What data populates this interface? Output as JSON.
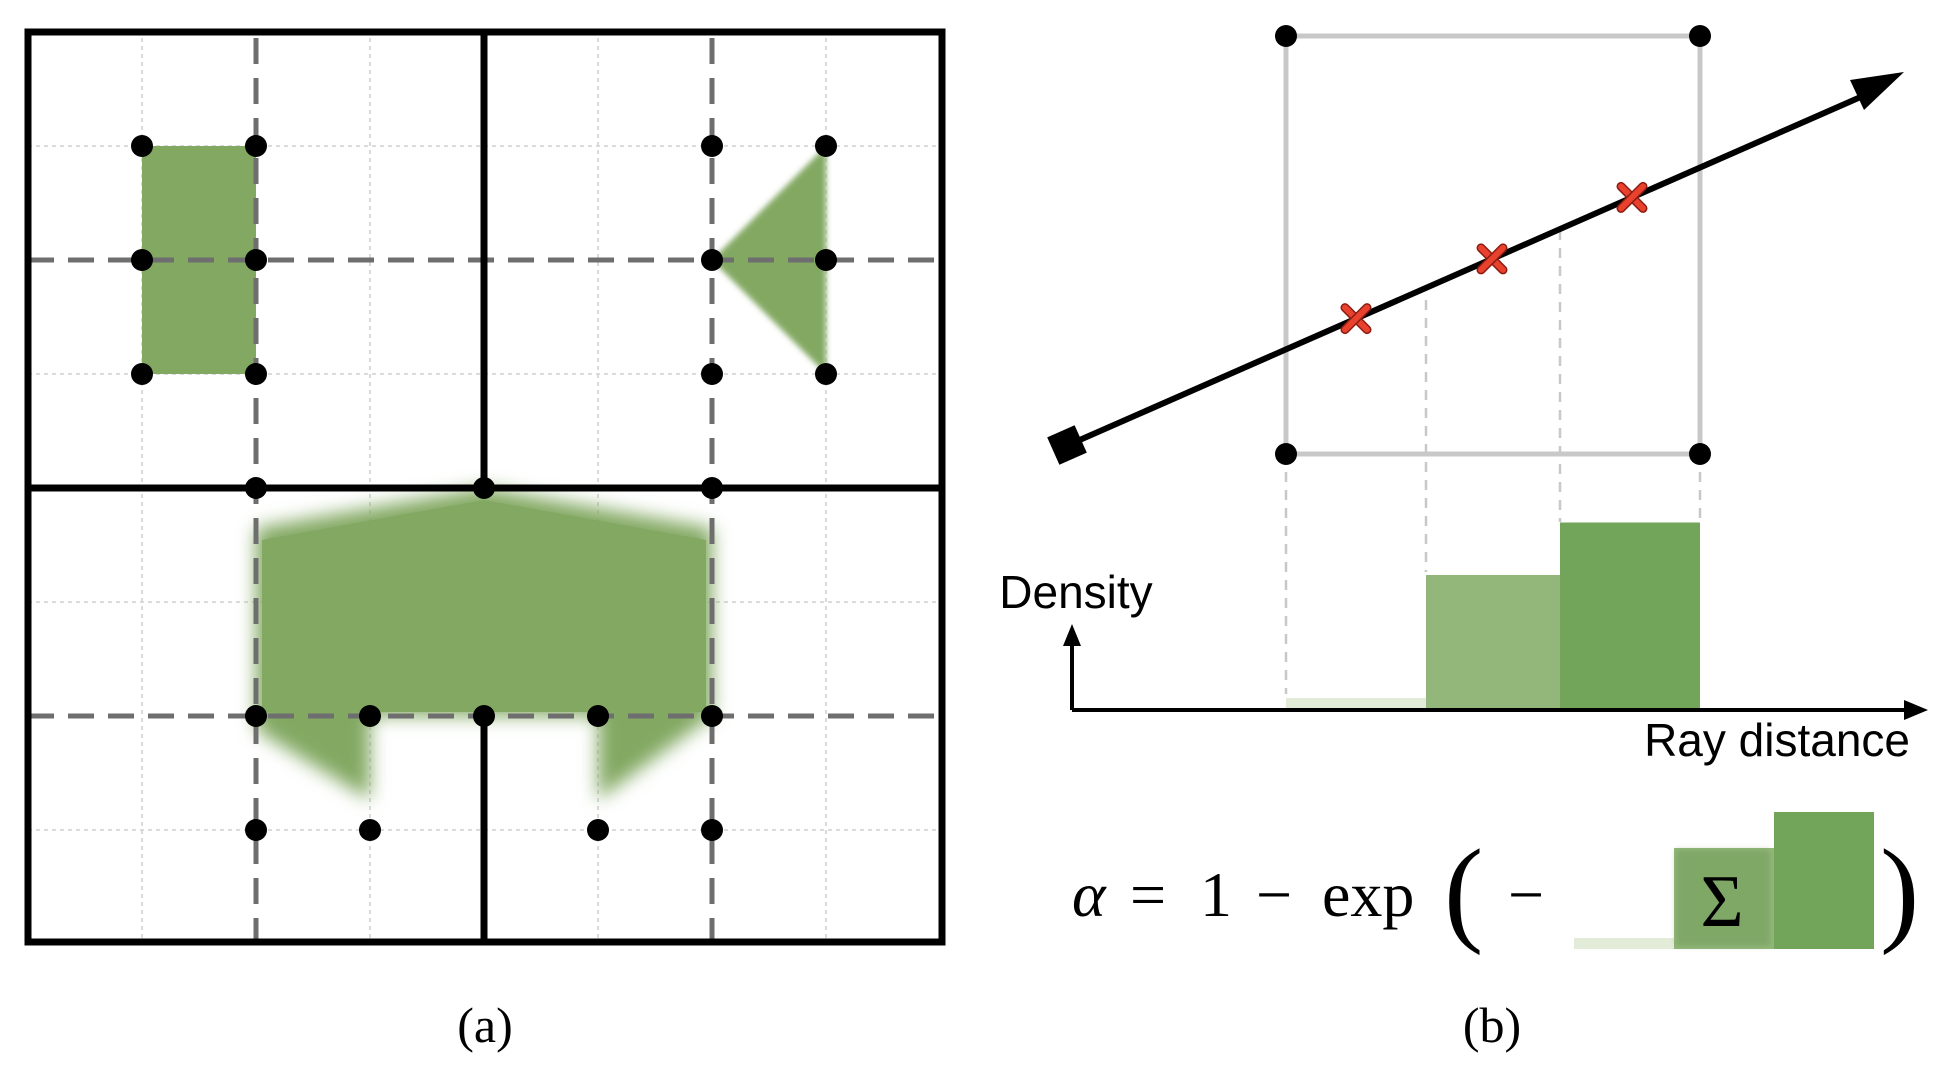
{
  "panel_a": {
    "caption": "(a)"
  },
  "panel_b": {
    "caption": "(b)",
    "density_axis_label": "Density",
    "ray_axis_label": "Ray distance",
    "formula": {
      "alpha": "α",
      "equals": "=",
      "one": "1",
      "minus": "−",
      "exp": "exp",
      "open_paren": "(",
      "minus_inner": "−",
      "sum": "Σ",
      "close_paren": ")"
    },
    "density_bins": [
      0.08,
      0.9,
      1.25
    ],
    "sample_count": 3
  },
  "colors": {
    "green": "#82a862",
    "green_light": "#93b77b",
    "green_dark": "#72a55a",
    "green_faint": "#e3ecd9",
    "sample_marker": "#e8412e",
    "grid_gray": "#bdbdbd",
    "dash_gray": "#6e6e6e"
  }
}
